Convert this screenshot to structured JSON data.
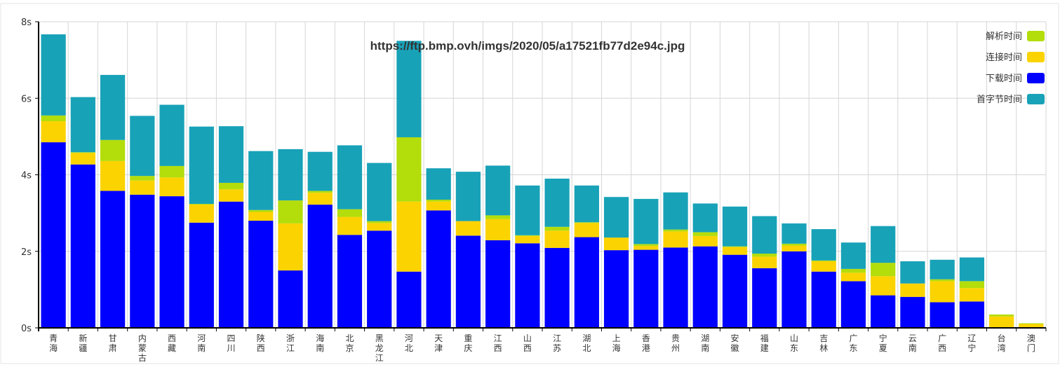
{
  "chart_data": {
    "type": "bar",
    "stacked": true,
    "watermark": "https://ftp.bmp.ovh/imgs/2020/05/a17521fb77d2e94c.jpg",
    "y_ticks": [
      "0s",
      "2s",
      "4s",
      "6s",
      "8s"
    ],
    "ylim": [
      0,
      8
    ],
    "grid": true,
    "legend_position": "top-right",
    "categories": [
      "青海",
      "新疆",
      "甘肃",
      "内蒙古",
      "西藏",
      "河南",
      "四川",
      "陕西",
      "浙江",
      "海南",
      "北京",
      "黑龙江",
      "河北",
      "天津",
      "重庆",
      "江西",
      "山西",
      "江苏",
      "湖北",
      "上海",
      "香港",
      "贵州",
      "湖南",
      "安徽",
      "福建",
      "山东",
      "吉林",
      "广东",
      "宁夏",
      "云南",
      "广西",
      "辽宁",
      "台湾",
      "澳门"
    ],
    "legend": [
      {
        "name": "解析时间",
        "color": "#b3dd0b"
      },
      {
        "name": "连接时间",
        "color": "#fbd300"
      },
      {
        "name": "下载时间",
        "color": "#0000ff"
      },
      {
        "name": "首字节时间",
        "color": "#18a2b8"
      }
    ],
    "series": [
      {
        "name": "下载时间",
        "color": "#0000ff",
        "values": [
          4.85,
          4.27,
          3.58,
          3.48,
          3.44,
          2.75,
          3.3,
          2.8,
          1.5,
          3.22,
          2.43,
          2.54,
          1.47,
          3.07,
          2.41,
          2.29,
          2.21,
          2.09,
          2.37,
          2.03,
          2.04,
          2.1,
          2.13,
          1.91,
          1.56,
          2.0,
          1.47,
          1.22,
          0.85,
          0.81,
          0.67,
          0.69,
          0.0,
          0.0
        ]
      },
      {
        "name": "连接时间",
        "color": "#fbd300",
        "values": [
          0.55,
          0.3,
          0.78,
          0.37,
          0.49,
          0.47,
          0.32,
          0.23,
          1.23,
          0.31,
          0.47,
          0.2,
          1.83,
          0.23,
          0.38,
          0.55,
          0.19,
          0.45,
          0.37,
          0.33,
          0.1,
          0.42,
          0.27,
          0.2,
          0.3,
          0.15,
          0.27,
          0.22,
          0.5,
          0.35,
          0.55,
          0.35,
          0.3,
          0.1
        ]
      },
      {
        "name": "解析时间",
        "color": "#b3dd0b",
        "values": [
          0.15,
          0.02,
          0.55,
          0.12,
          0.3,
          0.02,
          0.17,
          0.05,
          0.6,
          0.05,
          0.2,
          0.05,
          1.68,
          0.05,
          0.0,
          0.1,
          0.02,
          0.1,
          0.02,
          0.0,
          0.05,
          0.05,
          0.1,
          0.02,
          0.08,
          0.05,
          0.02,
          0.1,
          0.35,
          0.0,
          0.05,
          0.18,
          0.05,
          0.02
        ]
      },
      {
        "name": "首字节时间",
        "color": "#18a2b8",
        "values": [
          2.12,
          1.44,
          1.7,
          1.57,
          1.6,
          2.02,
          1.48,
          1.54,
          1.34,
          1.02,
          1.67,
          1.52,
          2.52,
          0.82,
          1.29,
          1.3,
          1.3,
          1.26,
          0.96,
          1.06,
          1.18,
          0.97,
          0.75,
          1.04,
          0.98,
          0.53,
          0.82,
          0.69,
          0.96,
          0.58,
          0.51,
          0.62,
          0.0,
          0.0
        ]
      }
    ]
  }
}
